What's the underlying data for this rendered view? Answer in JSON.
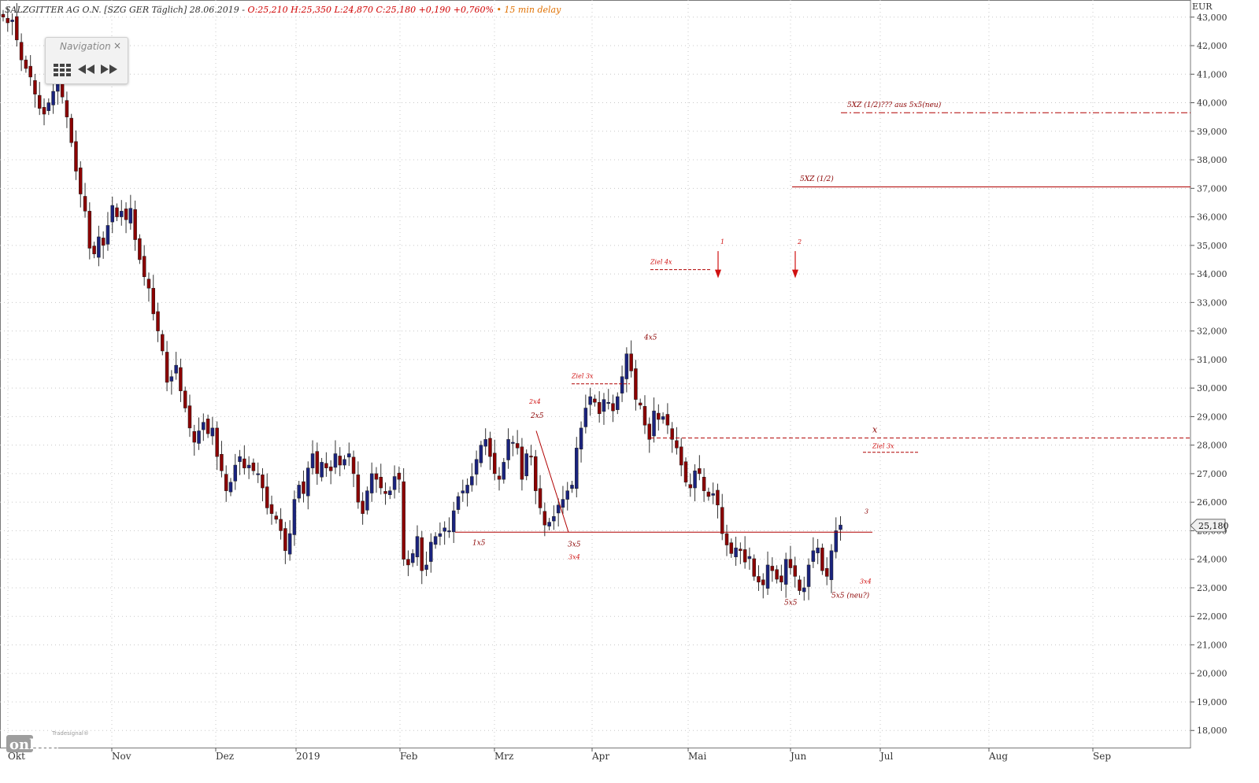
{
  "header": {
    "instrument": "SALZGITTER AG O.N. [SZG GER Täglich] 28.06.2019 -",
    "ohlc": "O:25,210 H:25,350 L:24,870 C:25,180 +0,190 +0,760%",
    "delay": "• 15 min delay"
  },
  "navigation": {
    "title": "Navigation",
    "close": "×"
  },
  "logo": {
    "brand": "online",
    "sub": "Tradesignal®"
  },
  "colors": {
    "bull": "#1a237e",
    "bear": "#8b0000",
    "line": "#b00000",
    "dashed": "#d01010",
    "grid": "#c8c8c8"
  },
  "chart_data": {
    "type": "candlestick",
    "y_unit": "EUR",
    "ylim": [
      17.4,
      43.6
    ],
    "y_ticks": [
      "18,000",
      "19,000",
      "20,000",
      "21,000",
      "22,000",
      "23,000",
      "24,000",
      "25,000",
      "26,000",
      "27,000",
      "28,000",
      "29,000",
      "30,000",
      "31,000",
      "32,000",
      "33,000",
      "34,000",
      "35,000",
      "36,000",
      "37,000",
      "38,000",
      "39,000",
      "40,000",
      "41,000",
      "42,000",
      "43,000"
    ],
    "x_labels": [
      "Okt",
      "Nov",
      "Dez",
      "2019",
      "Feb",
      "Mrz",
      "Apr",
      "Mai",
      "Jun",
      "Jul",
      "Aug",
      "Sep"
    ],
    "last_price": "25,180",
    "closes": [
      43.0,
      42.8,
      42.9,
      42.2,
      41.5,
      41.2,
      40.9,
      40.3,
      39.8,
      39.6,
      40.0,
      40.4,
      40.8,
      40.2,
      39.5,
      38.6,
      37.6,
      36.8,
      36.2,
      34.9,
      34.7,
      35.3,
      35.0,
      35.7,
      36.4,
      36.0,
      36.2,
      35.9,
      36.3,
      35.2,
      34.5,
      33.9,
      33.5,
      32.6,
      32.0,
      31.3,
      30.2,
      30.4,
      30.8,
      29.9,
      29.3,
      28.6,
      28.1,
      28.5,
      28.8,
      28.4,
      28.6,
      27.6,
      27.1,
      26.4,
      26.7,
      27.3,
      27.6,
      27.2,
      27.3,
      27.1,
      27.0,
      26.5,
      25.8,
      25.6,
      25.4,
      25.0,
      24.3,
      24.9,
      26.1,
      26.6,
      26.3,
      27.2,
      27.7,
      27.0,
      27.4,
      27.2,
      27.1,
      27.7,
      27.3,
      27.5,
      27.7,
      27.0,
      26.0,
      25.6,
      26.4,
      27.0,
      26.8,
      26.5,
      26.3,
      26.4,
      26.9,
      26.8,
      24.0,
      23.8,
      24.2,
      24.8,
      23.6,
      23.8,
      24.6,
      24.8,
      24.9,
      25.1,
      25.0,
      25.7,
      26.2,
      26.4,
      26.6,
      26.9,
      27.5,
      28.0,
      28.2,
      27.6,
      27.0,
      26.8,
      27.4,
      28.2,
      28.1,
      27.9,
      26.8,
      27.7,
      27.6,
      26.4,
      25.8,
      25.2,
      25.3,
      25.5,
      25.9,
      26.1,
      26.4,
      26.6,
      27.9,
      28.6,
      29.3,
      29.7,
      29.5,
      29.1,
      29.6,
      29.5,
      29.2,
      29.7,
      30.4,
      31.2,
      30.6,
      29.6,
      29.4,
      28.7,
      28.2,
      29.2,
      28.9,
      29.0,
      28.7,
      28.2,
      27.9,
      27.3,
      26.7,
      26.5,
      27.1,
      27.0,
      26.4,
      26.2,
      26.3,
      25.9,
      24.9,
      24.5,
      24.2,
      24.4,
      24.3,
      23.9,
      24.1,
      23.4,
      23.2,
      23.1,
      23.8,
      23.6,
      23.3,
      23.2,
      24.0,
      23.7,
      23.4,
      22.9,
      23.0,
      23.8,
      24.3,
      24.4,
      23.6,
      23.4,
      24.3,
      25.0,
      25.2
    ]
  },
  "annotations": {
    "label_5xz_top": "5XZ (1/2)??? aus 5x5(neu)",
    "label_5xz": "5XZ (1/2)",
    "ziel4x": "Ziel 4x",
    "arrow1": "1",
    "arrow2": "2",
    "label_4x5": "4x5",
    "ziel3x_a": "Ziel 3x",
    "label_x": "x",
    "ziel3x_b": "Ziel 3x",
    "label_2x4": "2x4",
    "label_2x5": "2x5",
    "label_1x5": "1x5",
    "label_3x5": "3x5",
    "label_3x4_a": "3x4",
    "label_5x5": "5x5",
    "label_5x5neu": "5x5 (neu?)",
    "label_3": "3",
    "label_3x4_b": "3x4"
  }
}
